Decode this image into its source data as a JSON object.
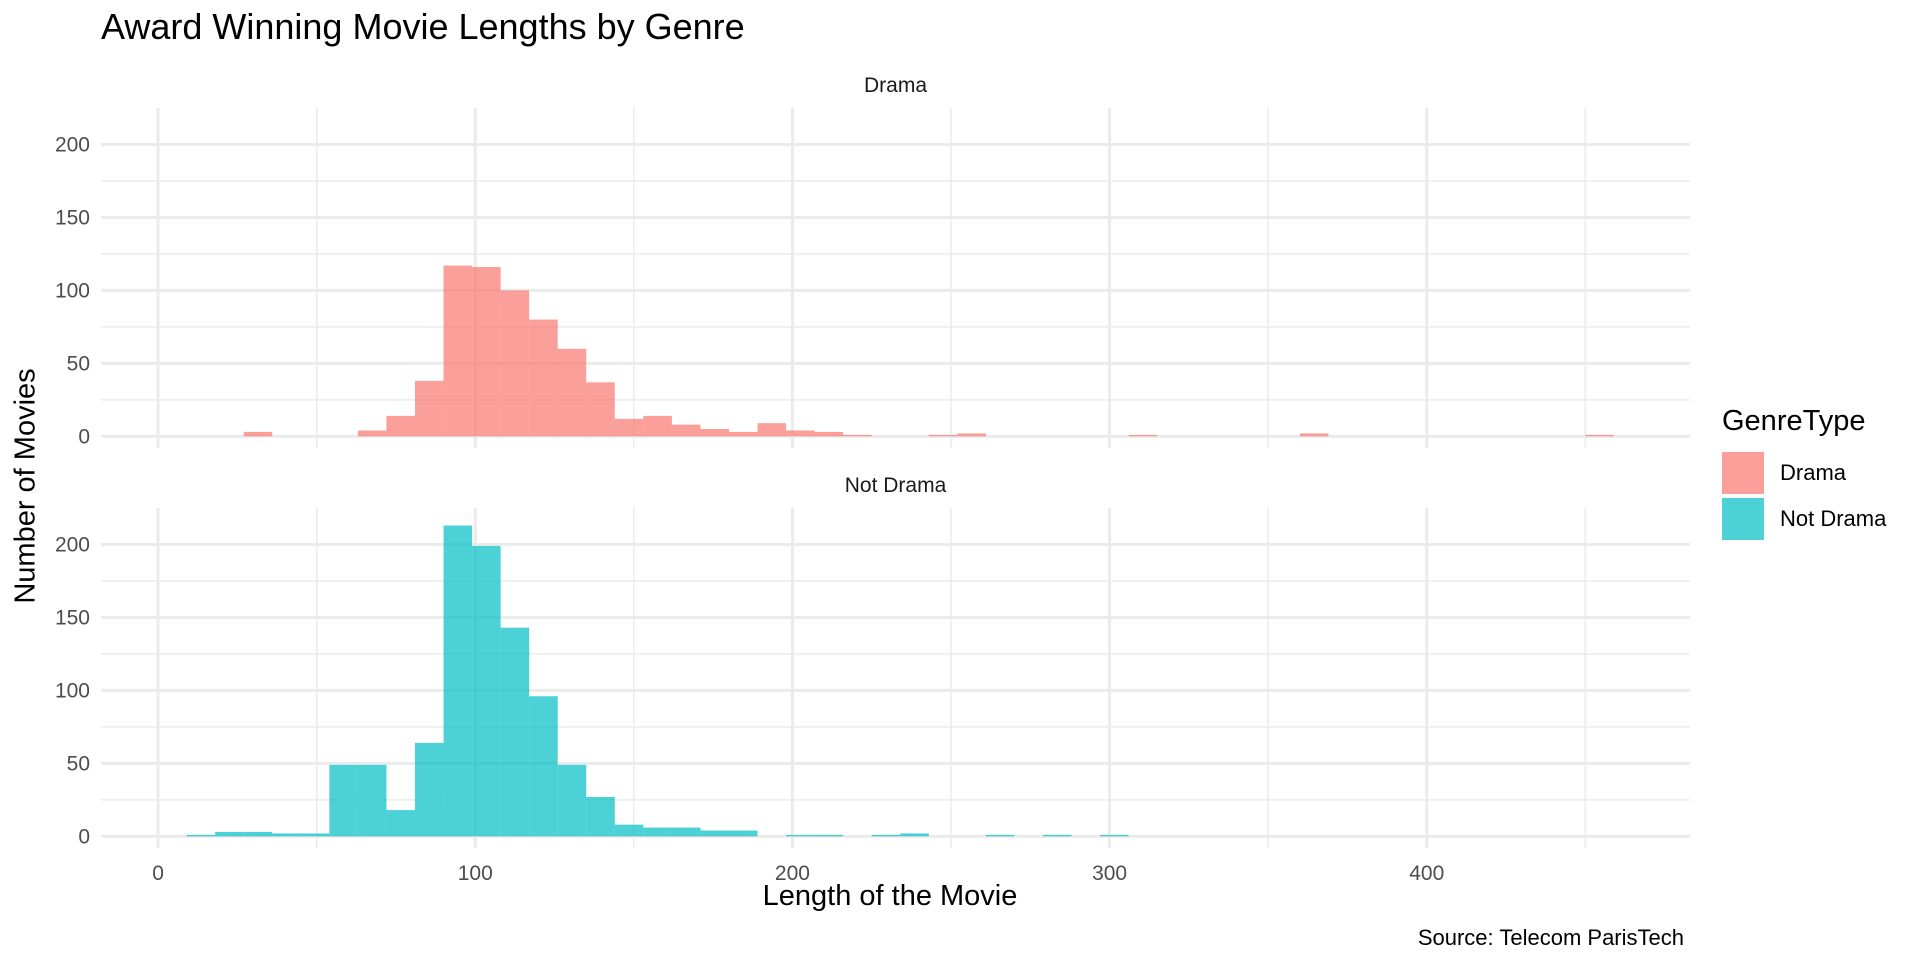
{
  "title": "Award Winning Movie Lengths by Genre",
  "caption": "Source: Telecom ParisTech",
  "colors": {
    "Drama": "#F8766D",
    "Not Drama": "#00BFC4",
    "grid": "#ebebeb"
  },
  "chart_data": {
    "type": "bar",
    "title": "Award Winning Movie Lengths by Genre",
    "xlabel": "Length of the Movie",
    "ylabel": "Number of Movies",
    "xlim": [
      -18,
      483
    ],
    "ylim": [
      -8,
      225
    ],
    "bin_width": 9,
    "x_ticks": [
      0,
      100,
      200,
      300,
      400
    ],
    "y_ticks": [
      0,
      50,
      100,
      150,
      200
    ],
    "grid": true,
    "legend": {
      "title": "GenreType",
      "position": "right",
      "entries": [
        "Drama",
        "Not Drama"
      ]
    },
    "facets": [
      "Drama",
      "Not Drama"
    ],
    "series": [
      {
        "name": "Drama",
        "bins": [
          {
            "x": 27,
            "y": 3
          },
          {
            "x": 63,
            "y": 4
          },
          {
            "x": 72,
            "y": 14
          },
          {
            "x": 81,
            "y": 38
          },
          {
            "x": 90,
            "y": 117
          },
          {
            "x": 99,
            "y": 116
          },
          {
            "x": 108,
            "y": 100
          },
          {
            "x": 117,
            "y": 80
          },
          {
            "x": 126,
            "y": 60
          },
          {
            "x": 135,
            "y": 37
          },
          {
            "x": 144,
            "y": 12
          },
          {
            "x": 153,
            "y": 14
          },
          {
            "x": 162,
            "y": 8
          },
          {
            "x": 171,
            "y": 5
          },
          {
            "x": 180,
            "y": 3
          },
          {
            "x": 189,
            "y": 9
          },
          {
            "x": 198,
            "y": 4
          },
          {
            "x": 207,
            "y": 3
          },
          {
            "x": 216,
            "y": 1
          },
          {
            "x": 243,
            "y": 1
          },
          {
            "x": 252,
            "y": 2
          },
          {
            "x": 306,
            "y": 1
          },
          {
            "x": 360,
            "y": 2
          },
          {
            "x": 450,
            "y": 1
          }
        ]
      },
      {
        "name": "Not Drama",
        "bins": [
          {
            "x": 9,
            "y": 1
          },
          {
            "x": 18,
            "y": 3
          },
          {
            "x": 27,
            "y": 3
          },
          {
            "x": 36,
            "y": 2
          },
          {
            "x": 45,
            "y": 2
          },
          {
            "x": 54,
            "y": 49
          },
          {
            "x": 63,
            "y": 49
          },
          {
            "x": 72,
            "y": 18
          },
          {
            "x": 81,
            "y": 64
          },
          {
            "x": 90,
            "y": 213
          },
          {
            "x": 99,
            "y": 199
          },
          {
            "x": 108,
            "y": 143
          },
          {
            "x": 117,
            "y": 96
          },
          {
            "x": 126,
            "y": 49
          },
          {
            "x": 135,
            "y": 27
          },
          {
            "x": 144,
            "y": 8
          },
          {
            "x": 153,
            "y": 6
          },
          {
            "x": 162,
            "y": 6
          },
          {
            "x": 171,
            "y": 4
          },
          {
            "x": 180,
            "y": 4
          },
          {
            "x": 198,
            "y": 1
          },
          {
            "x": 207,
            "y": 1
          },
          {
            "x": 225,
            "y": 1
          },
          {
            "x": 234,
            "y": 2
          },
          {
            "x": 261,
            "y": 1
          },
          {
            "x": 279,
            "y": 1
          },
          {
            "x": 297,
            "y": 1
          }
        ]
      }
    ]
  }
}
